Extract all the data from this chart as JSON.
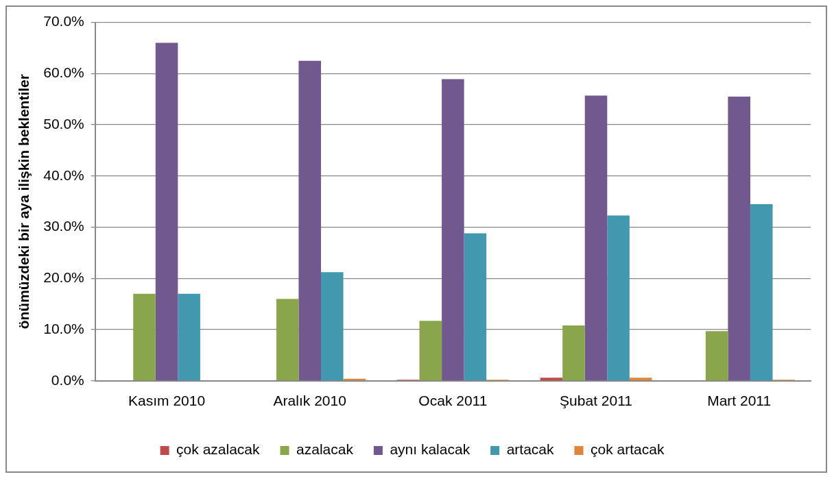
{
  "chart_data": {
    "type": "bar",
    "ylabel": "önümüzdeki bir aya ilişkin beklentiler",
    "categories": [
      "Kasım 2010",
      "Aralık 2010",
      "Ocak 2011",
      "Şubat 2011",
      "Mart 2011"
    ],
    "series": [
      {
        "name": "çok azalacak",
        "color": "#be4b48",
        "values": [
          0,
          0,
          0.2,
          0.6,
          0
        ]
      },
      {
        "name": "azalacak",
        "color": "#8aa64c",
        "values": [
          17.0,
          16.0,
          11.7,
          10.8,
          9.7
        ]
      },
      {
        "name": "aynı kalacak",
        "color": "#71588f",
        "values": [
          66.0,
          62.5,
          58.9,
          55.7,
          55.5
        ]
      },
      {
        "name": "artacak",
        "color": "#4198af",
        "values": [
          17.0,
          21.2,
          28.8,
          32.3,
          34.5
        ]
      },
      {
        "name": "çok artacak",
        "color": "#e1853a",
        "values": [
          0,
          0.4,
          0.2,
          0.6,
          0.2
        ]
      }
    ],
    "ylim": [
      0,
      70
    ],
    "yticks": [
      {
        "value": 0,
        "label": "0.0%"
      },
      {
        "value": 10,
        "label": "10.0%"
      },
      {
        "value": 20,
        "label": "20.0%"
      },
      {
        "value": 30,
        "label": "30.0%"
      },
      {
        "value": 40,
        "label": "40.0%"
      },
      {
        "value": 50,
        "label": "50.0%"
      },
      {
        "value": 60,
        "label": "60.0%"
      },
      {
        "value": 70,
        "label": "70.0%"
      }
    ],
    "grid": "y",
    "legend": "bottom"
  }
}
